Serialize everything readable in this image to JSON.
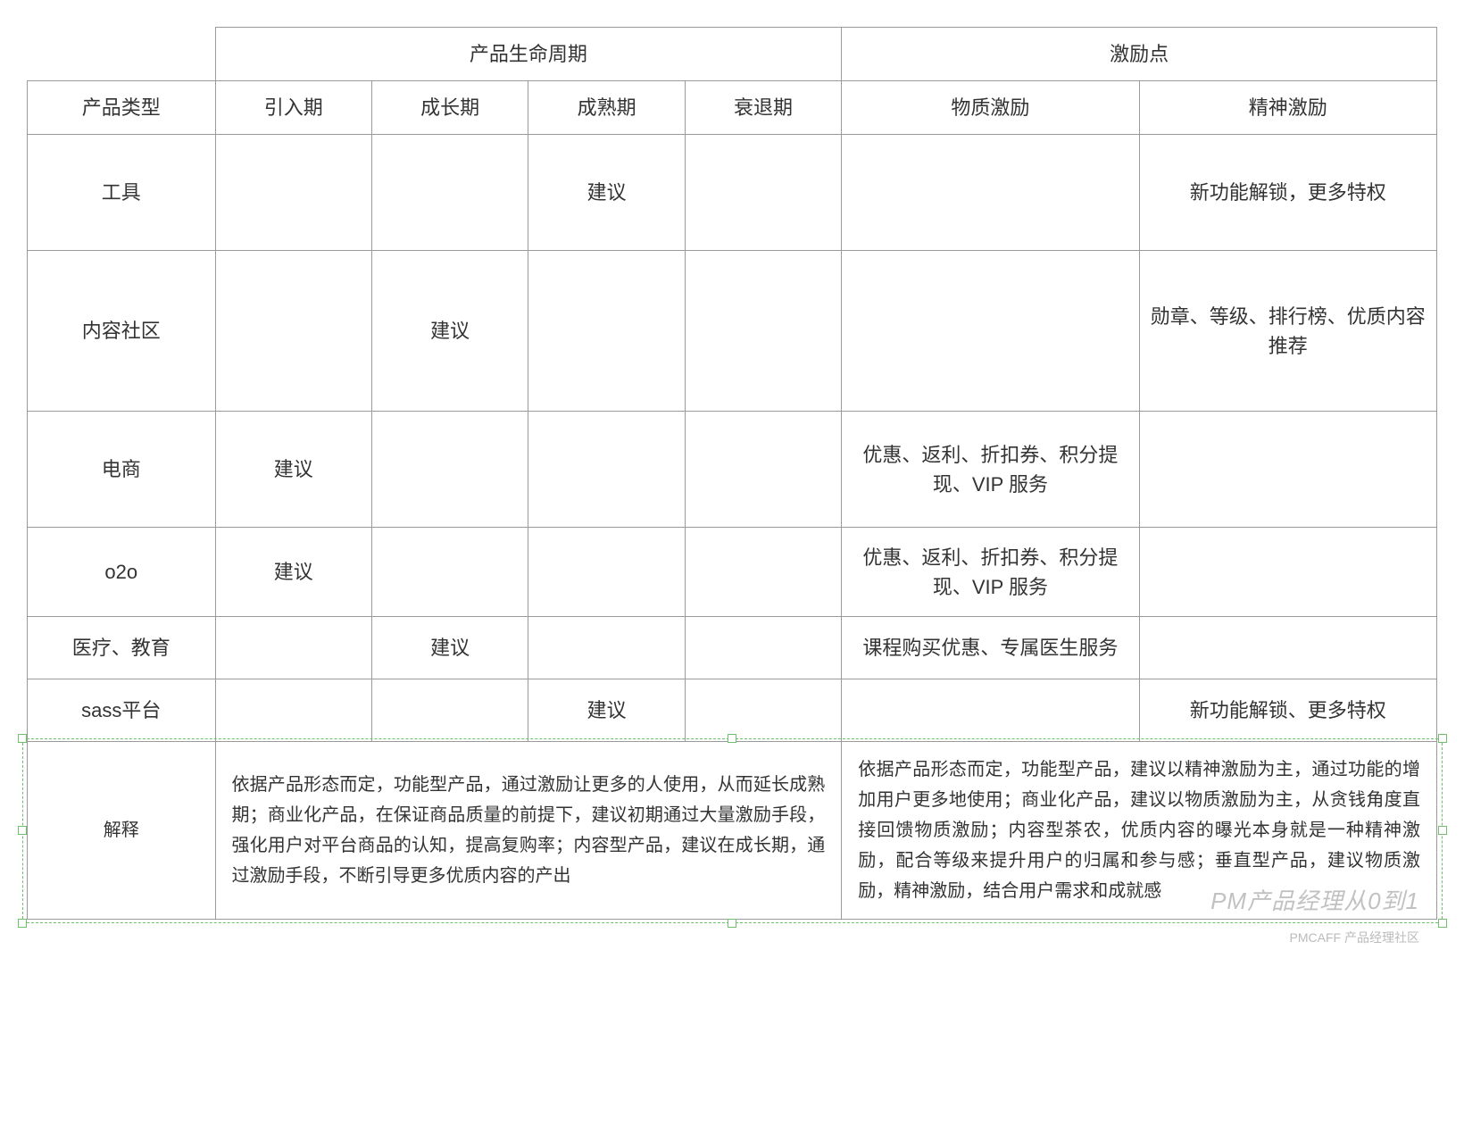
{
  "header": {
    "lifecycle_group": "产品生命周期",
    "incentive_group": "激励点",
    "product_type": "产品类型",
    "phase_intro": "引入期",
    "phase_growth": "成长期",
    "phase_mature": "成熟期",
    "phase_decline": "衰退期",
    "material_incentive": "物质激励",
    "spirit_incentive": "精神激励"
  },
  "rows": {
    "tools": {
      "label": "工具",
      "intro": "",
      "growth": "",
      "mature": "建议",
      "decline": "",
      "material": "",
      "spirit": "新功能解锁，更多特权"
    },
    "content_community": {
      "label": "内容社区",
      "intro": "",
      "growth": "建议",
      "mature": "",
      "decline": "",
      "material": "",
      "spirit": "勋章、等级、排行榜、优质内容推荐"
    },
    "ecommerce": {
      "label": "电商",
      "intro": "建议",
      "growth": "",
      "mature": "",
      "decline": "",
      "material": "优惠、返利、折扣券、积分提现、VIP 服务",
      "spirit": ""
    },
    "o2o": {
      "label": "o2o",
      "intro": "建议",
      "growth": "",
      "mature": "",
      "decline": "",
      "material": "优惠、返利、折扣券、积分提现、VIP 服务",
      "spirit": ""
    },
    "med_edu": {
      "label": "医疗、教育",
      "intro": "",
      "growth": "建议",
      "mature": "",
      "decline": "",
      "material": "课程购买优惠、专属医生服务",
      "spirit": ""
    },
    "sass": {
      "label": "sass平台",
      "intro": "",
      "growth": "",
      "mature": "建议",
      "decline": "",
      "material": "",
      "spirit": "新功能解锁、更多特权"
    }
  },
  "explain": {
    "label": "解释",
    "lifecycle_text": "依据产品形态而定，功能型产品，通过激励让更多的人使用，从而延长成熟期；商业化产品，在保证商品质量的前提下，建议初期通过大量激励手段，强化用户对平台商品的认知，提高复购率；内容型产品，建议在成长期，通过激励手段，不断引导更多优质内容的产出",
    "incentive_text": "依据产品形态而定，功能型产品，建议以精神激励为主，通过功能的增加用户更多地使用；商业化产品，建议以物质激励为主，从贪钱角度直接回馈物质激励；内容型茶农，优质内容的曝光本身就是一种精神激励，配合等级来提升用户的归属和参与感；垂直型产品，建议物质激励，精神激励，结合用户需求和成就感"
  },
  "watermark": "PM产品经理从0到1",
  "footer_mark": "PMCAFF 产品经理社区",
  "style": {
    "border_color": "#9a9a9a",
    "selection_color": "#6fbf6f",
    "font_main": 22,
    "font_explain": 20,
    "bg": "#ffffff"
  }
}
